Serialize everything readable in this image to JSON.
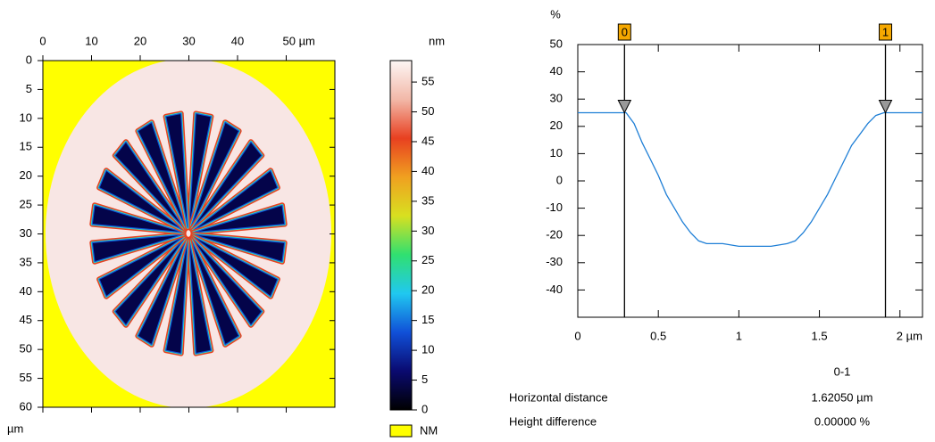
{
  "chart_data": [
    {
      "type": "heatmap",
      "axis_unit": "µm",
      "xlim": [
        0,
        60
      ],
      "xticks": [
        0,
        10,
        20,
        30,
        40,
        {
          "value": 50,
          "label": "50 µm"
        }
      ],
      "ylim": [
        0,
        60
      ],
      "yticks": [
        0,
        5,
        10,
        15,
        20,
        25,
        30,
        35,
        40,
        45,
        50,
        55,
        60
      ],
      "y_inverted": true,
      "colorbar": {
        "label": "nm",
        "zlim": [
          0,
          58.6
        ],
        "ticks": [
          0,
          5,
          10,
          15,
          20,
          25,
          30,
          35,
          40,
          45,
          50,
          55
        ],
        "colormap": [
          "#000000",
          "#0a0a70",
          "#1050d8",
          "#20c8f0",
          "#30e070",
          "#d8e020",
          "#f0a020",
          "#e84020",
          "#f2b8a8",
          "#fdf6f4"
        ]
      },
      "legend": {
        "label": "NM",
        "color": "#ffff00"
      }
    },
    {
      "type": "line",
      "ylabel": "%",
      "xlim": [
        0,
        2.14
      ],
      "xticks": [
        0,
        0.5,
        1,
        1.5,
        {
          "value": 2,
          "label": "2 µm"
        }
      ],
      "ylim": [
        -50,
        50
      ],
      "yticks": [
        -40,
        -30,
        -20,
        -10,
        0,
        10,
        20,
        30,
        40,
        50
      ],
      "series": [
        {
          "color": "#1f7fd6",
          "x": [
            0,
            0.3,
            0.35,
            0.4,
            0.45,
            0.5,
            0.55,
            0.6,
            0.65,
            0.7,
            0.75,
            0.8,
            0.9,
            1.0,
            1.1,
            1.2,
            1.3,
            1.35,
            1.4,
            1.45,
            1.5,
            1.55,
            1.6,
            1.65,
            1.7,
            1.75,
            1.8,
            1.85,
            1.9,
            2.14
          ],
          "values": [
            25,
            25,
            21,
            14,
            8,
            2,
            -5,
            -10,
            -15,
            -19,
            -22,
            -23,
            -23,
            -24,
            -24,
            -24,
            -23,
            -22,
            -19,
            -15,
            -10,
            -5,
            1,
            7,
            13,
            17,
            21,
            24,
            25,
            25
          ]
        }
      ],
      "markers": [
        {
          "label": "0",
          "x": 0.29
        },
        {
          "label": "1",
          "x": 1.91
        }
      ],
      "marker_color": "#f5a800",
      "table": {
        "header": "0-1",
        "rows": [
          [
            "Horizontal distance",
            "1.62050 µm"
          ],
          [
            "Height difference",
            "0.00000 %"
          ]
        ]
      }
    }
  ]
}
